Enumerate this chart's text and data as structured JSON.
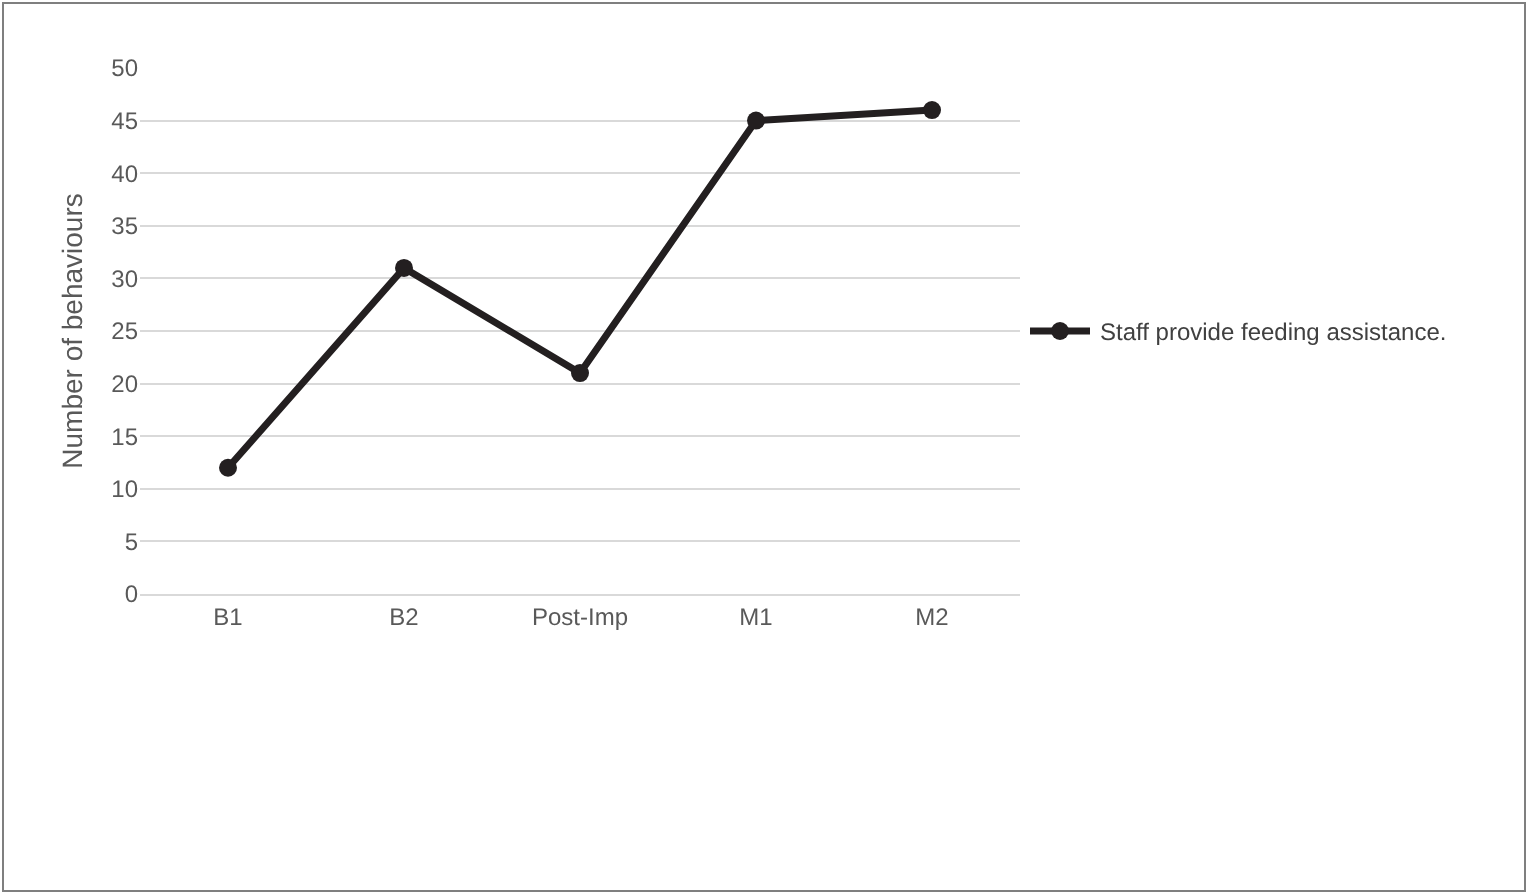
{
  "chart_data": {
    "type": "line",
    "ylabel": "Number of behaviours",
    "categories": [
      "B1",
      "B2",
      "Post-Imp",
      "M1",
      "M2"
    ],
    "series": [
      {
        "name": "Staff provide feeding assistance.",
        "color": "#231f20",
        "values": [
          12,
          31,
          21,
          45,
          46
        ]
      }
    ],
    "ylim": [
      0,
      50
    ],
    "yticks": [
      0,
      5,
      10,
      15,
      20,
      25,
      30,
      35,
      40,
      45,
      50
    ],
    "grid": "y",
    "legend": "right",
    "marker": "circle",
    "line_style": "solid"
  }
}
